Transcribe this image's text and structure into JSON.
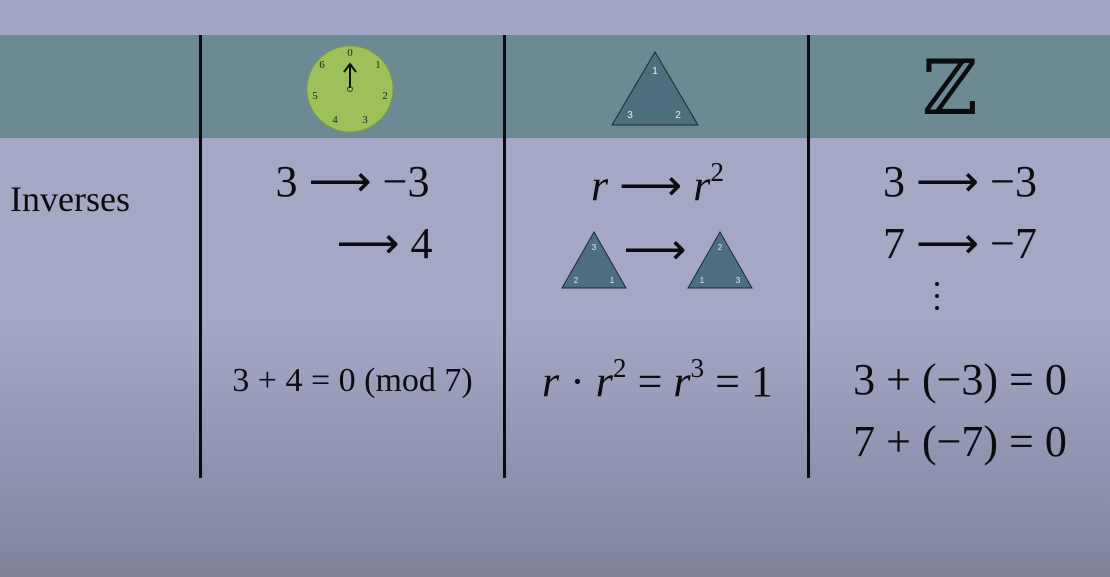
{
  "row": {
    "label": "Inverses"
  },
  "columns": {
    "clock": {
      "header_numbers": [
        "0",
        "1",
        "2",
        "3",
        "4",
        "5",
        "6"
      ],
      "lines": [
        "3 ⟶ −3",
        "⟶ 4"
      ],
      "equation": "3 + 4 = 0  (mod 7)"
    },
    "triangle": {
      "header_vertices": [
        "1",
        "2",
        "3"
      ],
      "line1": {
        "left": "r",
        "arrow": "⟶",
        "right": "r",
        "right_exp": "2"
      },
      "small_left_vertices": [
        "3",
        "2",
        "1"
      ],
      "small_right_vertices": [
        "2",
        "1",
        "3"
      ],
      "arrow": "⟶",
      "equation": {
        "a": "r",
        "dot": "·",
        "b": "r",
        "b_exp": "2",
        "eq1": "=",
        "c": "r",
        "c_exp": "3",
        "eq2": "=",
        "d": "1"
      }
    },
    "integers": {
      "header_symbol": "ℤ",
      "lines": [
        "3 ⟶ −3",
        "7 ⟶ −7"
      ],
      "equations": [
        "3 + (−3) = 0",
        "7 + (−7) = 0"
      ]
    }
  },
  "colors": {
    "header_band": "#6b8a94",
    "clock_face": "#9dc15a",
    "triangle_fill": "#4e6f7e"
  }
}
